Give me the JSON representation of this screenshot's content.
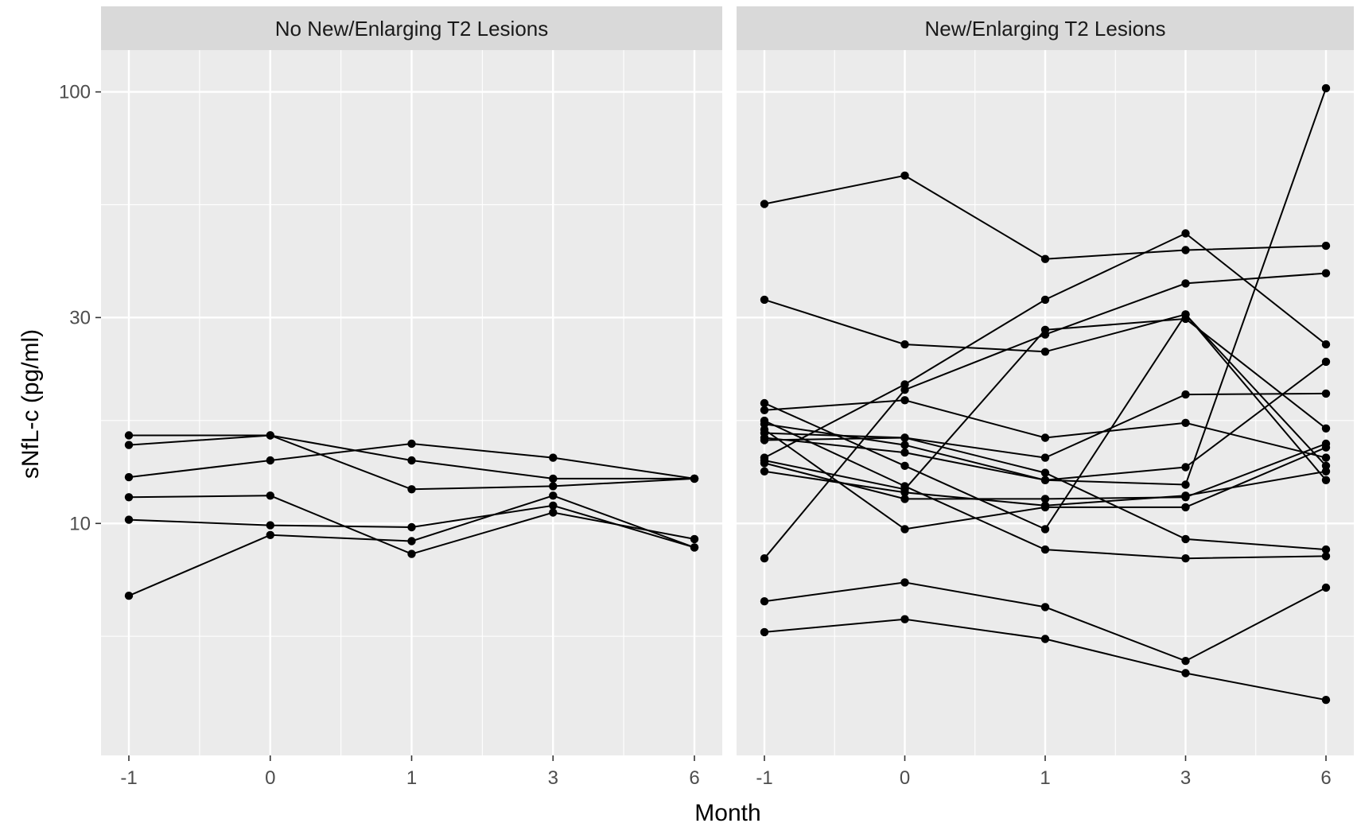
{
  "chart_data": {
    "type": "line",
    "xlabel": "Month",
    "ylabel": "sNfL-c (pg/ml)",
    "x": [
      "-1",
      "0",
      "1",
      "3",
      "6"
    ],
    "yscale": "log10",
    "ylim": [
      2.9,
      125
    ],
    "yticks": [
      10,
      30,
      100
    ],
    "grid": true,
    "panels": [
      {
        "title": "No New/Enlarging T2 Lesions",
        "series": [
          {
            "values": [
              16.0,
              16.0,
              14.0,
              12.7,
              12.7
            ]
          },
          {
            "values": [
              15.2,
              16.0,
              12.0,
              12.2,
              12.7
            ]
          },
          {
            "values": [
              12.8,
              14.0,
              15.3,
              14.2,
              12.7
            ]
          },
          {
            "values": [
              11.5,
              11.6,
              8.5,
              10.6,
              9.2
            ]
          },
          {
            "values": [
              10.2,
              9.9,
              9.8,
              11.0,
              8.8
            ]
          },
          {
            "values": [
              6.8,
              9.4,
              9.1,
              11.6,
              8.8
            ]
          }
        ]
      },
      {
        "title": "New/Enlarging T2 Lesions",
        "series": [
          {
            "values": [
              55,
              64,
              41,
              43,
              44
            ]
          },
          {
            "values": [
              33,
              26,
              25,
              30.5,
              13.6
            ]
          },
          {
            "values": [
              19,
              13.6,
              9.7,
              30.5,
              12.6
            ]
          },
          {
            "values": [
              17.3,
              12.2,
              8.7,
              8.3,
              8.4
            ]
          },
          {
            "values": [
              14.2,
              21,
              33,
              47,
              26
            ]
          },
          {
            "values": [
              16.2,
              15.8,
              14.2,
              19.9,
              20
            ]
          },
          {
            "values": [
              15.6,
              15.8,
              13.1,
              9.2,
              8.7
            ]
          },
          {
            "values": [
              14.0,
              12.0,
              28.1,
              29.8,
              16.6
            ]
          },
          {
            "values": [
              13.8,
              11.4,
              11.4,
              11.5,
              15.3
            ]
          },
          {
            "values": [
              8.3,
              20.4,
              27.4,
              36,
              38
            ]
          },
          {
            "values": [
              6.6,
              7.3,
              6.4,
              4.8,
              7.1
            ]
          },
          {
            "values": [
              5.6,
              6.0,
              5.4,
              4.5,
              3.9
            ]
          },
          {
            "values": [
              18.3,
              19.3,
              15.8,
              17.1,
              14.2
            ]
          },
          {
            "values": [
              15.8,
              14.6,
              12.6,
              13.5,
              23.7
            ]
          },
          {
            "values": [
              16.5,
              9.7,
              10.9,
              10.9,
              15.0
            ]
          },
          {
            "values": [
              17.0,
              15.2,
              12.6,
              12.3,
              102
            ]
          },
          {
            "values": [
              13.2,
              11.8,
              11.0,
              11.6,
              13.2
            ]
          }
        ]
      }
    ]
  }
}
